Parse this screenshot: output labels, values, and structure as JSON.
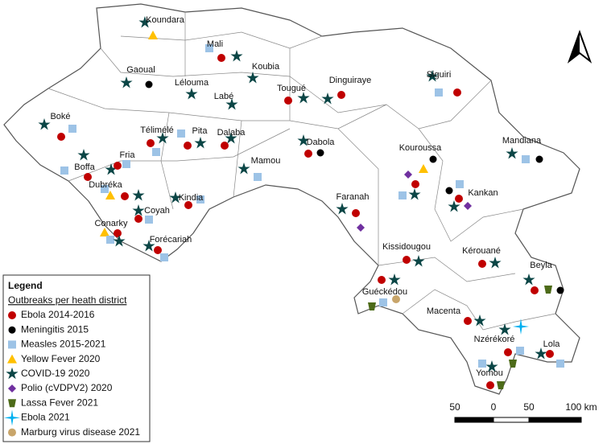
{
  "map": {
    "districts": [
      "Koundara",
      "Mali",
      "Gaoual",
      "Koubia",
      "Lélouma",
      "Labé",
      "Tougué",
      "Dinguiraye",
      "Siguiri",
      "Boké",
      "Télimélé",
      "Pita",
      "Dalaba",
      "Mandiana",
      "Dabola",
      "Mamou",
      "Fria",
      "Boffa",
      "Kouroussa",
      "Dubréka",
      "Kindia",
      "Faranah",
      "Kankan",
      "Coyah",
      "Conarky",
      "Forécariah",
      "Kissidougou",
      "Kérouané",
      "Beyla",
      "Guéckédou",
      "Macenta",
      "Nzérékoré",
      "Lola",
      "Yomou"
    ],
    "legend": {
      "title": "Legend",
      "subtitle": "Outbreaks per heath district",
      "items": [
        "Ebola 2014-2016",
        "Meningitis 2015",
        "Measles 2015-2021",
        "Yellow Fever 2020",
        "COVID-19 2020",
        "Polio (cVDPV2) 2020",
        "Lassa Fever 2021",
        "Ebola 2021",
        "Marburg virus disease 2021"
      ]
    },
    "scale_bar": {
      "labels": [
        "50",
        "0",
        "50",
        "100 km"
      ]
    }
  }
}
